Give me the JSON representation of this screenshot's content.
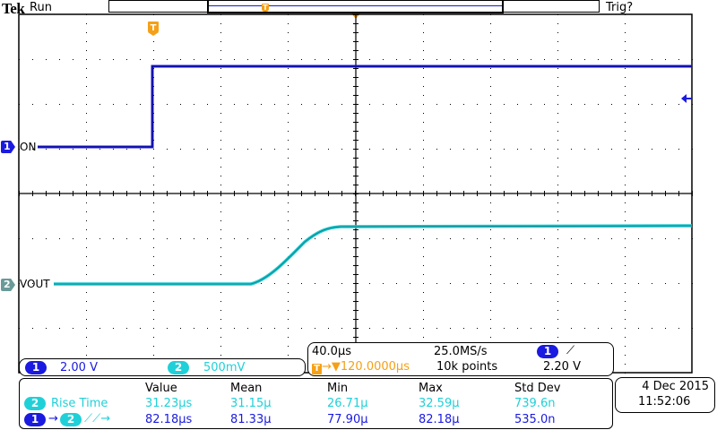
{
  "header": {
    "brand": "Tek",
    "acquisition_state": "Run",
    "trigger_state": "Trig?",
    "trigger_marker_glyph": "T"
  },
  "graticule": {
    "h_divisions": 10,
    "v_divisions": 8,
    "trigger_position_marker": "T"
  },
  "channels": [
    {
      "number": "1",
      "label": "ON",
      "color": "#1a1ae0",
      "scale": "2.00 V"
    },
    {
      "number": "2",
      "label": "VOUT",
      "color": "#20d0d8",
      "scale": "500mV"
    }
  ],
  "timebase": {
    "horizontal_scale": "40.0µs",
    "sample_rate": "25.0MS/s",
    "record_length": "10k points",
    "trigger_delay": "120.0000µs",
    "trigger_delay_prefix": "→▼",
    "trigger_source": "1",
    "trigger_slope_glyph": "⟋",
    "trigger_level": "2.20 V"
  },
  "measurements": {
    "headers": [
      "",
      "Value",
      "Mean",
      "Min",
      "Max",
      "Std Dev"
    ],
    "rows": [
      {
        "source": "2",
        "name": "Rise Time",
        "value": "31.23µs",
        "mean": "31.15µ",
        "min": "26.71µ",
        "max": "32.59µ",
        "std_dev": "739.6n",
        "color": "#20d0d8"
      },
      {
        "source": "1",
        "source2": "2",
        "name": "Delay ⟋⟋→",
        "value": "82.18µs",
        "mean": "81.33µ",
        "min": "77.90µ",
        "max": "82.18µ",
        "std_dev": "535.0n",
        "color": "#1a1ae0"
      }
    ]
  },
  "datetime": {
    "date": "4 Dec  2015",
    "time": "11:52:06"
  },
  "chart_data": {
    "type": "line",
    "title": "",
    "xlabel": "Time (40.0µs/div)",
    "ylabel": "",
    "x_divisions": 10,
    "y_divisions": 8,
    "series": [
      {
        "name": "CH1 ON",
        "color": "#1a1ae0",
        "scale": "2.00 V/div",
        "points_div": [
          [
            -5.0,
            0.0
          ],
          [
            -3.3,
            0.0
          ],
          [
            -3.3,
            1.8
          ],
          [
            5.0,
            1.8
          ]
        ]
      },
      {
        "name": "CH2 VOUT",
        "color": "#20d0d8",
        "scale": "500mV/div",
        "points_div": [
          [
            -4.5,
            0.0
          ],
          [
            -1.5,
            0.0
          ],
          [
            -1.0,
            0.6
          ],
          [
            -0.5,
            1.6
          ],
          [
            -0.4,
            1.9
          ],
          [
            0,
            2.0
          ],
          [
            5.0,
            2.0
          ]
        ]
      }
    ]
  }
}
